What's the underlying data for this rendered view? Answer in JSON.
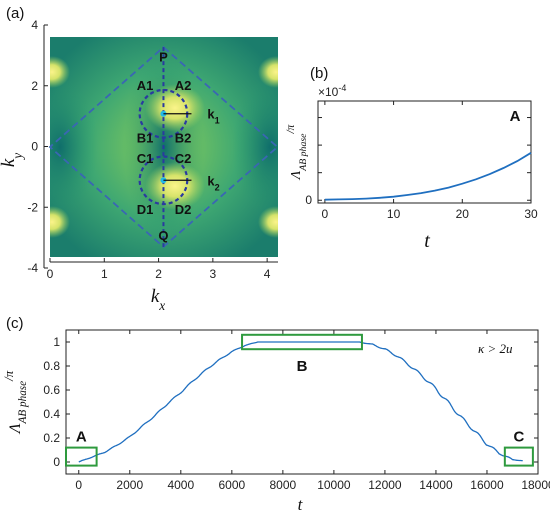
{
  "panels": {
    "a": "(a)",
    "b": "(b)",
    "c": "(c)"
  },
  "colors": {
    "curve": "#1f6fc0",
    "box": "#2e9a3e",
    "dash": "#3a66b4",
    "circle": "#2a3aa0",
    "dot": "#22b8e8"
  },
  "chart_data": [
    {
      "type": "heatmap",
      "panel": "(a)",
      "xlabel_base": "k",
      "xlabel_sub": "x",
      "ylabel_base": "k",
      "ylabel_sub": "y",
      "xlim": [
        0,
        4.2
      ],
      "ylim": [
        -4,
        4
      ],
      "xticks": [
        0,
        1,
        2,
        3,
        4
      ],
      "yticks": [
        -4,
        -2,
        0,
        2,
        4
      ],
      "diamond": [
        [
          2.09,
          3.63
        ],
        [
          4.19,
          0
        ],
        [
          2.09,
          -3.63
        ],
        [
          0,
          0
        ]
      ],
      "circles": [
        {
          "cx": 2.09,
          "cy": 1.21,
          "r": 0.42
        },
        {
          "cx": 2.09,
          "cy": -1.21,
          "r": 0.42
        }
      ],
      "dots": [
        {
          "x": 2.09,
          "y": 1.21
        },
        {
          "x": 2.09,
          "y": -1.21
        }
      ],
      "path_x": 2.09,
      "annotations": [
        {
          "text": "P",
          "x": 2.09,
          "y": 3.3
        },
        {
          "text": "A1",
          "x": 1.75,
          "y": 2.25
        },
        {
          "text": "A2",
          "x": 2.45,
          "y": 2.25
        },
        {
          "text": "k",
          "sub": "1",
          "x": 2.9,
          "y": 1.21
        },
        {
          "text": "B1",
          "x": 1.75,
          "y": 0.35
        },
        {
          "text": "B2",
          "x": 2.45,
          "y": 0.35
        },
        {
          "text": "C1",
          "x": 1.75,
          "y": -0.4
        },
        {
          "text": "C2",
          "x": 2.45,
          "y": -0.4
        },
        {
          "text": "k",
          "sub": "2",
          "x": 2.9,
          "y": -1.21
        },
        {
          "text": "D1",
          "x": 1.75,
          "y": -2.25
        },
        {
          "text": "D2",
          "x": 2.45,
          "y": -2.25
        },
        {
          "text": "Q",
          "x": 2.09,
          "y": -3.2
        }
      ]
    },
    {
      "type": "line",
      "panel": "(b)",
      "xlabel": "t",
      "ylabel_base": "Λ",
      "ylabel_sub": "AB phase",
      "ylabel_tail": "/π",
      "exponent": "×10",
      "exponent_power": "-4",
      "xlim": [
        -1,
        30
      ],
      "ylim": [
        -0.1,
        3.6
      ],
      "xticks": [
        0,
        10,
        20,
        30
      ],
      "yticks": [
        0,
        1,
        2,
        3
      ],
      "ytick_labels": [
        "0",
        "",
        "",
        ""
      ],
      "corner_label": "A",
      "x": [
        0,
        2,
        4,
        6,
        8,
        10,
        12,
        14,
        16,
        18,
        20,
        22,
        24,
        26,
        28,
        30
      ],
      "y": [
        0.02,
        0.03,
        0.04,
        0.06,
        0.09,
        0.13,
        0.19,
        0.26,
        0.35,
        0.46,
        0.6,
        0.76,
        0.95,
        1.17,
        1.42,
        1.72
      ]
    },
    {
      "type": "line",
      "panel": "(c)",
      "xlabel": "t",
      "ylabel_base": "Λ",
      "ylabel_sub": "AB phase",
      "ylabel_tail": "/π",
      "xlim": [
        -500,
        18000
      ],
      "ylim": [
        -0.1,
        1.1
      ],
      "xticks": [
        0,
        2000,
        4000,
        6000,
        8000,
        10000,
        12000,
        14000,
        16000,
        18000
      ],
      "yticks": [
        0,
        0.2,
        0.4,
        0.6,
        0.8,
        1
      ],
      "condition": "κ > 2u",
      "boxes": [
        {
          "label": "A",
          "x0": -500,
          "x1": 700,
          "y0": -0.03,
          "y1": 0.12
        },
        {
          "label": "B",
          "x0": 6400,
          "x1": 11100,
          "y0": 0.94,
          "y1": 1.06
        },
        {
          "label": "C",
          "x0": 16700,
          "x1": 17800,
          "y0": -0.03,
          "y1": 0.12
        }
      ],
      "x": [
        0,
        500,
        1000,
        1500,
        2000,
        2500,
        3000,
        3500,
        4000,
        4500,
        5000,
        5500,
        6000,
        6500,
        7000,
        7500,
        8000,
        8500,
        9000,
        9500,
        10000,
        10500,
        11000,
        11500,
        12000,
        12500,
        13000,
        13500,
        14000,
        14500,
        15000,
        15500,
        16000,
        16500,
        17000,
        17400
      ],
      "y": [
        0.0,
        0.04,
        0.08,
        0.14,
        0.21,
        0.3,
        0.39,
        0.49,
        0.58,
        0.68,
        0.77,
        0.85,
        0.92,
        0.97,
        1.0,
        1.0,
        1.0,
        1.0,
        1.0,
        1.0,
        1.0,
        1.0,
        1.0,
        0.98,
        0.94,
        0.88,
        0.8,
        0.71,
        0.61,
        0.49,
        0.37,
        0.26,
        0.15,
        0.07,
        0.02,
        0.01
      ]
    }
  ]
}
